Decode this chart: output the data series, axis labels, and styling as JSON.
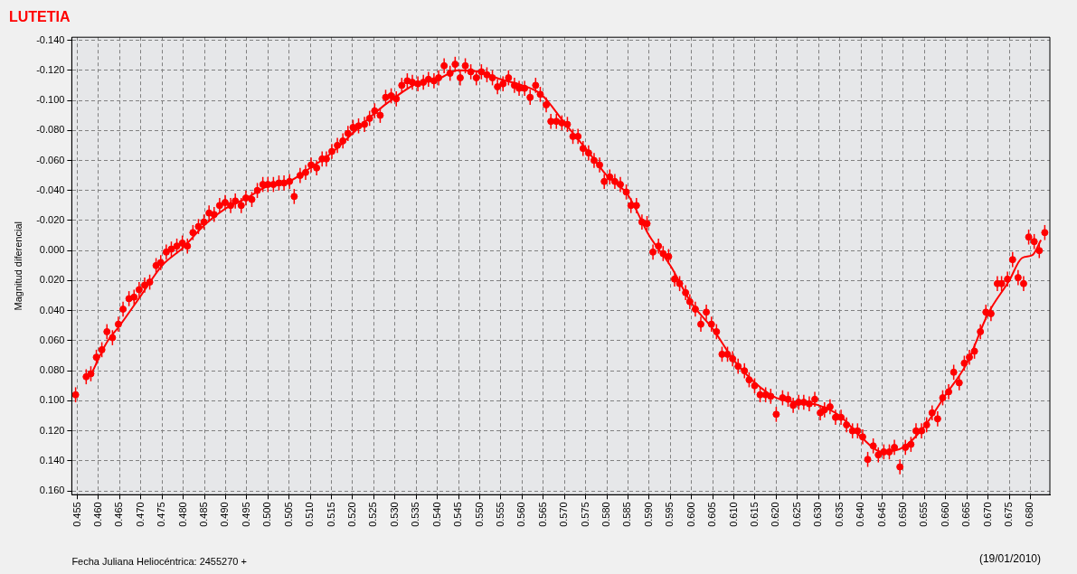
{
  "chart_data": {
    "type": "scatter",
    "title": "LUTETIA",
    "xlabel": "Fecha Juliana Heliocéntrica: 2455270 +",
    "ylabel": "Magnitud diferencial",
    "annotations": [
      "(19/01/2010)"
    ],
    "xlim": [
      0.4537,
      0.6846
    ],
    "ylim": [
      0.1625,
      -0.142
    ],
    "grid": true,
    "marker": "circle",
    "xticks": [
      {
        "value": 0.455,
        "label": "0.455"
      },
      {
        "value": 0.46,
        "label": "0.460"
      },
      {
        "value": 0.465,
        "label": "0.465"
      },
      {
        "value": 0.47,
        "label": "0.470"
      },
      {
        "value": 0.475,
        "label": "0.475"
      },
      {
        "value": 0.48,
        "label": "0.480"
      },
      {
        "value": 0.485,
        "label": "0.485"
      },
      {
        "value": 0.49,
        "label": "0.490"
      },
      {
        "value": 0.495,
        "label": "0.495"
      },
      {
        "value": 0.5,
        "label": "0.500"
      },
      {
        "value": 0.505,
        "label": "0.505"
      },
      {
        "value": 0.51,
        "label": "0.510"
      },
      {
        "value": 0.515,
        "label": "0.515"
      },
      {
        "value": 0.52,
        "label": "0.520"
      },
      {
        "value": 0.525,
        "label": "0.525"
      },
      {
        "value": 0.53,
        "label": "0.530"
      },
      {
        "value": 0.535,
        "label": "0.535"
      },
      {
        "value": 0.54,
        "label": "0.540"
      },
      {
        "value": 0.545,
        "label": "0.545"
      },
      {
        "value": 0.55,
        "label": "0.550"
      },
      {
        "value": 0.555,
        "label": "0.555"
      },
      {
        "value": 0.56,
        "label": "0.560"
      },
      {
        "value": 0.565,
        "label": "0.565"
      },
      {
        "value": 0.57,
        "label": "0.570"
      },
      {
        "value": 0.575,
        "label": "0.575"
      },
      {
        "value": 0.58,
        "label": "0.580"
      },
      {
        "value": 0.585,
        "label": "0.585"
      },
      {
        "value": 0.59,
        "label": "0.590"
      },
      {
        "value": 0.595,
        "label": "0.595"
      },
      {
        "value": 0.6,
        "label": "0.600"
      },
      {
        "value": 0.605,
        "label": "0.605"
      },
      {
        "value": 0.61,
        "label": "0.610"
      },
      {
        "value": 0.615,
        "label": "0.615"
      },
      {
        "value": 0.62,
        "label": "0.620"
      },
      {
        "value": 0.625,
        "label": "0.625"
      },
      {
        "value": 0.63,
        "label": "0.630"
      },
      {
        "value": 0.635,
        "label": "0.635"
      },
      {
        "value": 0.64,
        "label": "0.640"
      },
      {
        "value": 0.645,
        "label": "0.645"
      },
      {
        "value": 0.65,
        "label": "0.650"
      },
      {
        "value": 0.655,
        "label": "0.655"
      },
      {
        "value": 0.66,
        "label": "0.660"
      },
      {
        "value": 0.665,
        "label": "0.665"
      },
      {
        "value": 0.67,
        "label": "0.670"
      },
      {
        "value": 0.675,
        "label": "0.675"
      },
      {
        "value": 0.68,
        "label": "0.680"
      }
    ],
    "yticks": [
      {
        "value": -0.14,
        "label": "-0.140"
      },
      {
        "value": -0.12,
        "label": "-0.120"
      },
      {
        "value": -0.1,
        "label": "-0.100"
      },
      {
        "value": -0.08,
        "label": "-0.080"
      },
      {
        "value": -0.06,
        "label": "-0.060"
      },
      {
        "value": -0.04,
        "label": "-0.040"
      },
      {
        "value": -0.02,
        "label": "-0.020"
      },
      {
        "value": 0,
        "label": "0.000"
      },
      {
        "value": 0.02,
        "label": "0.020"
      },
      {
        "value": 0.04,
        "label": "0.040"
      },
      {
        "value": 0.06,
        "label": "0.060"
      },
      {
        "value": 0.08,
        "label": "0.080"
      },
      {
        "value": 0.1,
        "label": "0.100"
      },
      {
        "value": 0.12,
        "label": "0.120"
      },
      {
        "value": 0.14,
        "label": "0.140"
      },
      {
        "value": 0.16,
        "label": "0.160"
      }
    ],
    "series": [
      {
        "color": "#ff0000",
        "x": [
          0.4546,
          0.4571,
          0.4582,
          0.4595,
          0.4608,
          0.462,
          0.4633,
          0.4647,
          0.4658,
          0.4672,
          0.4684,
          0.4696,
          0.4709,
          0.4721,
          0.4736,
          0.4747,
          0.476,
          0.4772,
          0.4785,
          0.4798,
          0.481,
          0.4823,
          0.4836,
          0.4849,
          0.4861,
          0.4873,
          0.4886,
          0.4899,
          0.4912,
          0.4923,
          0.4937,
          0.4948,
          0.4962,
          0.4975,
          0.4988,
          0.5,
          0.5013,
          0.5026,
          0.5038,
          0.5051,
          0.5062,
          0.5076,
          0.5089,
          0.5102,
          0.5115,
          0.5128,
          0.5138,
          0.5151,
          0.5164,
          0.5177,
          0.5189,
          0.5201,
          0.5214,
          0.5228,
          0.524,
          0.5252,
          0.5265,
          0.5278,
          0.5291,
          0.5303,
          0.5316,
          0.5329,
          0.5341,
          0.5354,
          0.5367,
          0.5379,
          0.5392,
          0.5403,
          0.5416,
          0.543,
          0.5442,
          0.5454,
          0.5466,
          0.5479,
          0.5492,
          0.5504,
          0.5517,
          0.553,
          0.5542,
          0.5555,
          0.5568,
          0.5582,
          0.5593,
          0.5606,
          0.5619,
          0.5632,
          0.5643,
          0.5657,
          0.5668,
          0.5681,
          0.5694,
          0.5707,
          0.572,
          0.5732,
          0.5744,
          0.5757,
          0.577,
          0.5783,
          0.5794,
          0.5807,
          0.5819,
          0.5832,
          0.5846,
          0.5857,
          0.587,
          0.5883,
          0.5895,
          0.5909,
          0.5922,
          0.5933,
          0.5946,
          0.596,
          0.5972,
          0.5986,
          0.5996,
          0.6009,
          0.6022,
          0.6035,
          0.6047,
          0.6059,
          0.6072,
          0.6085,
          0.6097,
          0.611,
          0.6125,
          0.6136,
          0.6149,
          0.6162,
          0.6175,
          0.6187,
          0.62,
          0.6215,
          0.6228,
          0.624,
          0.6253,
          0.6265,
          0.6278,
          0.6291,
          0.6304,
          0.6314,
          0.6327,
          0.634,
          0.6353,
          0.6366,
          0.638,
          0.6392,
          0.6404,
          0.6416,
          0.6429,
          0.6441,
          0.6454,
          0.6467,
          0.6479,
          0.6492,
          0.6505,
          0.6518,
          0.653,
          0.6543,
          0.6555,
          0.6568,
          0.6581,
          0.6593,
          0.6607,
          0.6619,
          0.6632,
          0.6644,
          0.6656,
          0.6668,
          0.6682,
          0.6695,
          0.6707,
          0.6722,
          0.6732,
          0.6746,
          0.6758,
          0.6771,
          0.6784,
          0.6796,
          0.6809,
          0.6821,
          0.6834
        ],
        "values": [
          0.096,
          0.084,
          0.082,
          0.071,
          0.066,
          0.054,
          0.058,
          0.049,
          0.039,
          0.032,
          0.031,
          0.026,
          0.023,
          0.021,
          0.01,
          0.008,
          0.001,
          -0.001,
          -0.003,
          -0.005,
          -0.003,
          -0.012,
          -0.016,
          -0.019,
          -0.025,
          -0.024,
          -0.03,
          -0.032,
          -0.03,
          -0.033,
          -0.03,
          -0.035,
          -0.034,
          -0.04,
          -0.044,
          -0.044,
          -0.044,
          -0.045,
          -0.045,
          -0.046,
          -0.036,
          -0.05,
          -0.052,
          -0.057,
          -0.055,
          -0.061,
          -0.061,
          -0.066,
          -0.07,
          -0.073,
          -0.078,
          -0.082,
          -0.083,
          -0.084,
          -0.088,
          -0.093,
          -0.09,
          -0.102,
          -0.103,
          -0.101,
          -0.11,
          -0.113,
          -0.112,
          -0.111,
          -0.112,
          -0.114,
          -0.113,
          -0.115,
          -0.123,
          -0.118,
          -0.124,
          -0.115,
          -0.123,
          -0.119,
          -0.115,
          -0.119,
          -0.117,
          -0.115,
          -0.109,
          -0.111,
          -0.115,
          -0.11,
          -0.108,
          -0.108,
          -0.102,
          -0.11,
          -0.104,
          -0.097,
          -0.086,
          -0.086,
          -0.085,
          -0.084,
          -0.076,
          -0.076,
          -0.068,
          -0.065,
          -0.06,
          -0.057,
          -0.046,
          -0.049,
          -0.046,
          -0.044,
          -0.039,
          -0.03,
          -0.03,
          -0.019,
          -0.018,
          0.001,
          -0.003,
          0.002,
          0.004,
          0.019,
          0.022,
          0.028,
          0.034,
          0.039,
          0.049,
          0.041,
          0.049,
          0.054,
          0.069,
          0.069,
          0.072,
          0.077,
          0.08,
          0.086,
          0.09,
          0.096,
          0.096,
          0.097,
          0.109,
          0.098,
          0.099,
          0.103,
          0.101,
          0.101,
          0.102,
          0.099,
          0.108,
          0.106,
          0.104,
          0.111,
          0.111,
          0.116,
          0.12,
          0.12,
          0.124,
          0.139,
          0.13,
          0.136,
          0.134,
          0.134,
          0.131,
          0.144,
          0.131,
          0.129,
          0.12,
          0.12,
          0.116,
          0.108,
          0.112,
          0.098,
          0.094,
          0.081,
          0.088,
          0.075,
          0.071,
          0.067,
          0.054,
          0.041,
          0.042,
          0.022,
          0.022,
          0.019,
          0.006,
          0.018,
          0.022,
          -0.009,
          -0.006,
          0.0,
          -0.012
        ],
        "errors": [
          0.005,
          0.005,
          0.005,
          0.005,
          0.005,
          0.005,
          0.005,
          0.005,
          0.005,
          0.005,
          0.005,
          0.005,
          0.005,
          0.005,
          0.005,
          0.005,
          0.005,
          0.005,
          0.005,
          0.005,
          0.005,
          0.005,
          0.005,
          0.005,
          0.005,
          0.005,
          0.005,
          0.005,
          0.005,
          0.005,
          0.005,
          0.005,
          0.005,
          0.005,
          0.005,
          0.005,
          0.005,
          0.005,
          0.005,
          0.005,
          0.005,
          0.005,
          0.005,
          0.005,
          0.005,
          0.005,
          0.005,
          0.005,
          0.005,
          0.005,
          0.005,
          0.005,
          0.005,
          0.005,
          0.005,
          0.005,
          0.005,
          0.005,
          0.005,
          0.005,
          0.005,
          0.005,
          0.005,
          0.005,
          0.005,
          0.005,
          0.005,
          0.005,
          0.005,
          0.005,
          0.005,
          0.005,
          0.005,
          0.005,
          0.005,
          0.005,
          0.005,
          0.005,
          0.005,
          0.005,
          0.005,
          0.005,
          0.005,
          0.005,
          0.005,
          0.005,
          0.005,
          0.005,
          0.005,
          0.005,
          0.005,
          0.005,
          0.005,
          0.005,
          0.005,
          0.005,
          0.005,
          0.005,
          0.005,
          0.005,
          0.005,
          0.005,
          0.005,
          0.005,
          0.005,
          0.005,
          0.005,
          0.005,
          0.005,
          0.005,
          0.005,
          0.005,
          0.005,
          0.005,
          0.005,
          0.005,
          0.005,
          0.005,
          0.005,
          0.005,
          0.005,
          0.005,
          0.005,
          0.005,
          0.005,
          0.005,
          0.005,
          0.005,
          0.005,
          0.005,
          0.005,
          0.005,
          0.005,
          0.005,
          0.005,
          0.005,
          0.005,
          0.005,
          0.005,
          0.005,
          0.005,
          0.005,
          0.005,
          0.005,
          0.005,
          0.005,
          0.005,
          0.005,
          0.005,
          0.005,
          0.005,
          0.005,
          0.005,
          0.005,
          0.005,
          0.005,
          0.005,
          0.005,
          0.005,
          0.005,
          0.005,
          0.005,
          0.005,
          0.005,
          0.005,
          0.005,
          0.005,
          0.005,
          0.005,
          0.005,
          0.005,
          0.005,
          0.005,
          0.005,
          0.005,
          0.005,
          0.005,
          0.005,
          0.005,
          0.005,
          0.005
        ]
      },
      {
        "type": "line",
        "color": "#ff0000",
        "marker": "none",
        "x": [
          0.4585,
          0.462,
          0.465,
          0.47,
          0.475,
          0.48,
          0.485,
          0.49,
          0.495,
          0.5,
          0.505,
          0.51,
          0.515,
          0.52,
          0.525,
          0.53,
          0.535,
          0.54,
          0.545,
          0.55,
          0.555,
          0.56,
          0.5645,
          0.57,
          0.575,
          0.58,
          0.585,
          0.59,
          0.595,
          0.6,
          0.605,
          0.61,
          0.615,
          0.62,
          0.625,
          0.63,
          0.635,
          0.64,
          0.645,
          0.65,
          0.655,
          0.66,
          0.665,
          0.67,
          0.675,
          0.678,
          0.6805,
          0.6825
        ],
        "values": [
          0.081,
          0.061,
          0.05,
          0.03,
          0.01,
          -0.002,
          -0.017,
          -0.028,
          -0.035,
          -0.043,
          -0.046,
          -0.055,
          -0.065,
          -0.078,
          -0.091,
          -0.102,
          -0.111,
          -0.114,
          -0.12,
          -0.119,
          -0.114,
          -0.11,
          -0.104,
          -0.085,
          -0.068,
          -0.05,
          -0.037,
          -0.01,
          0.01,
          0.035,
          0.052,
          0.073,
          0.088,
          0.098,
          0.101,
          0.103,
          0.11,
          0.124,
          0.134,
          0.131,
          0.117,
          0.096,
          0.075,
          0.042,
          0.02,
          0.005,
          0.003,
          -0.007
        ]
      }
    ]
  }
}
